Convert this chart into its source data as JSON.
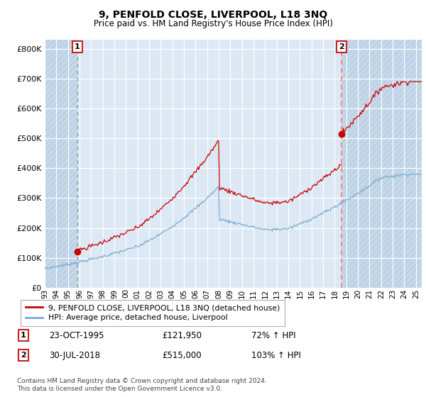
{
  "title": "9, PENFOLD CLOSE, LIVERPOOL, L18 3NQ",
  "subtitle": "Price paid vs. HM Land Registry's House Price Index (HPI)",
  "ylim": [
    0,
    830000
  ],
  "yticks": [
    0,
    100000,
    200000,
    300000,
    400000,
    500000,
    600000,
    700000,
    800000
  ],
  "xlim_start": 1993.0,
  "xlim_end": 2025.5,
  "xtick_years": [
    1993,
    1994,
    1995,
    1996,
    1997,
    1998,
    1999,
    2000,
    2001,
    2002,
    2003,
    2004,
    2005,
    2006,
    2007,
    2008,
    2009,
    2010,
    2011,
    2012,
    2013,
    2014,
    2015,
    2016,
    2017,
    2018,
    2019,
    2020,
    2021,
    2022,
    2023,
    2024,
    2025
  ],
  "purchase1_x": 1995.81,
  "purchase1_y": 121950,
  "purchase1_label": "1",
  "purchase1_date": "23-OCT-1995",
  "purchase1_price": "£121,950",
  "purchase1_hpi": "72% ↑ HPI",
  "purchase2_x": 2018.58,
  "purchase2_y": 515000,
  "purchase2_label": "2",
  "purchase2_date": "30-JUL-2018",
  "purchase2_price": "£515,000",
  "purchase2_hpi": "103% ↑ HPI",
  "red_line_color": "#cc0000",
  "blue_line_color": "#7aaad0",
  "marker_color": "#cc0000",
  "vline1_color": "#aaaaaa",
  "vline2_color": "#ff6666",
  "bg_chart": "#dce9f5",
  "bg_hatch_color": "#c5d8ea",
  "grid_color": "#ffffff",
  "legend_entry1": "9, PENFOLD CLOSE, LIVERPOOL, L18 3NQ (detached house)",
  "legend_entry2": "HPI: Average price, detached house, Liverpool",
  "footer": "Contains HM Land Registry data © Crown copyright and database right 2024.\nThis data is licensed under the Open Government Licence v3.0."
}
